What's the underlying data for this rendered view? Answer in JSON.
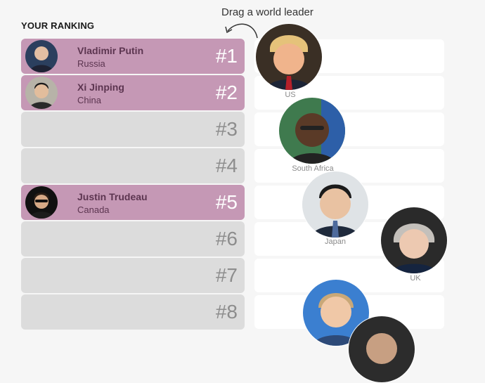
{
  "ranking": {
    "heading": "YOUR RANKING",
    "slots": [
      {
        "rank": "#1",
        "name": "Vladimir Putin",
        "country": "Russia"
      },
      {
        "rank": "#2",
        "name": "Xi Jinping",
        "country": "China"
      },
      {
        "rank": "#3",
        "name": "",
        "country": ""
      },
      {
        "rank": "#4",
        "name": "",
        "country": ""
      },
      {
        "rank": "#5",
        "name": "Justin Trudeau",
        "country": "Canada"
      },
      {
        "rank": "#6",
        "name": "",
        "country": ""
      },
      {
        "rank": "#7",
        "name": "",
        "country": ""
      },
      {
        "rank": "#8",
        "name": "",
        "country": ""
      }
    ]
  },
  "pool": {
    "hint": "Drag a world leader",
    "leaders": [
      {
        "country": "US"
      },
      {
        "country": "South Africa"
      },
      {
        "country": "Japan"
      },
      {
        "country": "UK"
      },
      {
        "country": ""
      },
      {
        "country": ""
      }
    ]
  },
  "colors": {
    "filled_slot": "#c598b5",
    "empty_slot": "#dcdcdc",
    "drop_zone": "#ffffff"
  }
}
